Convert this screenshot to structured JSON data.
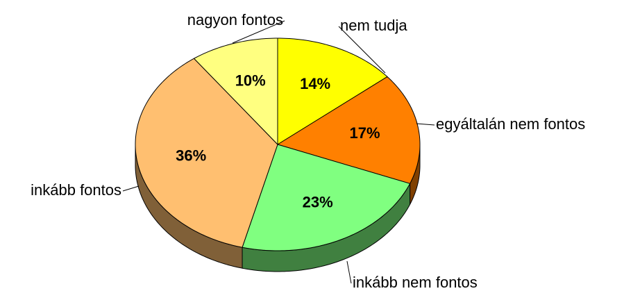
{
  "chart_data": {
    "type": "pie",
    "categories": [
      "nem tudja",
      "egyáltalán nem fontos",
      "inkább nem fontos",
      "inkább fontos",
      "nagyon fontos"
    ],
    "values": [
      14,
      17,
      23,
      36,
      10
    ],
    "value_labels": [
      "14%",
      "17%",
      "23%",
      "36%",
      "10%"
    ],
    "colors": [
      "#ffff00",
      "#ff8000",
      "#80ff80",
      "#ffbf70",
      "#ffff80"
    ]
  }
}
